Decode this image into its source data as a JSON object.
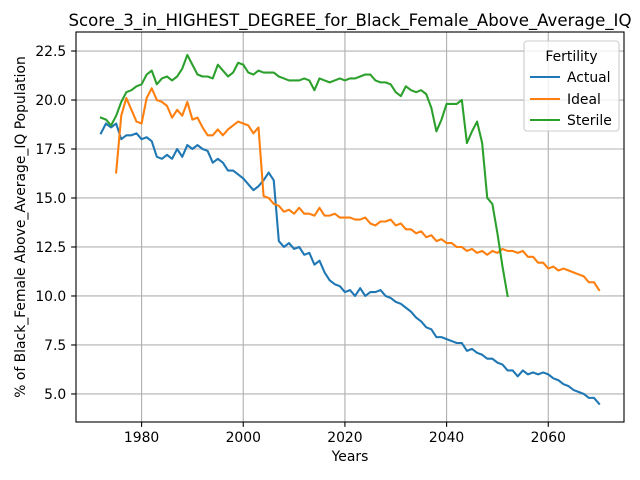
{
  "chart_data": {
    "type": "line",
    "title": "Score_3_in_HIGHEST_DEGREE_for_Black_Female_Above_Average_IQ",
    "xlabel": "Years",
    "ylabel": "% of Black_Female Above_Average_IQ Population",
    "xlim": [
      1967.1,
      2074.9
    ],
    "ylim": [
      3.57,
      23.47
    ],
    "x_ticks": [
      1980,
      2000,
      2020,
      2040,
      2060
    ],
    "x_tick_labels": [
      "1980",
      "2000",
      "2020",
      "2040",
      "2060"
    ],
    "y_ticks": [
      5,
      7.5,
      10,
      12.5,
      15,
      17.5,
      20,
      22.5
    ],
    "y_tick_labels": [
      "5.0",
      "7.5",
      "10.0",
      "12.5",
      "15.0",
      "17.5",
      "20.0",
      "22.5"
    ],
    "grid": true,
    "legend": {
      "title": "Fertility",
      "position": "top-right"
    },
    "x": [
      1972,
      1973,
      1974,
      1975,
      1976,
      1977,
      1978,
      1979,
      1980,
      1981,
      1982,
      1983,
      1984,
      1985,
      1986,
      1987,
      1988,
      1989,
      1990,
      1991,
      1992,
      1993,
      1994,
      1995,
      1996,
      1997,
      1998,
      1999,
      2000,
      2001,
      2002,
      2003,
      2004,
      2005,
      2006,
      2007,
      2008,
      2009,
      2010,
      2011,
      2012,
      2013,
      2014,
      2015,
      2016,
      2017,
      2018,
      2019,
      2020,
      2021,
      2022,
      2023,
      2024,
      2025,
      2026,
      2027,
      2028,
      2029,
      2030,
      2031,
      2032,
      2033,
      2034,
      2035,
      2036,
      2037,
      2038,
      2039,
      2040,
      2041,
      2042,
      2043,
      2044,
      2045,
      2046,
      2047,
      2048,
      2049,
      2050,
      2051,
      2052,
      2053,
      2054,
      2055,
      2056,
      2057,
      2058,
      2059,
      2060,
      2061,
      2062,
      2063,
      2064,
      2065,
      2066,
      2067,
      2068,
      2069,
      2070
    ],
    "series": [
      {
        "name": "Actual",
        "color": "#1f77b4",
        "values": [
          18.3,
          18.8,
          18.6,
          18.8,
          18.0,
          18.2,
          18.2,
          18.3,
          18.0,
          18.1,
          17.9,
          17.1,
          17.0,
          17.2,
          17.0,
          17.5,
          17.1,
          17.7,
          17.5,
          17.7,
          17.5,
          17.4,
          16.8,
          17.0,
          16.8,
          16.4,
          16.4,
          16.2,
          16.0,
          15.7,
          15.4,
          15.6,
          15.9,
          16.3,
          15.9,
          12.8,
          12.5,
          12.7,
          12.4,
          12.5,
          12.1,
          12.2,
          11.6,
          11.8,
          11.2,
          10.8,
          10.6,
          10.5,
          10.2,
          10.3,
          10.0,
          10.4,
          10.0,
          10.2,
          10.2,
          10.3,
          10.0,
          9.9,
          9.7,
          9.6,
          9.4,
          9.2,
          8.9,
          8.7,
          8.4,
          8.3,
          7.9,
          7.9,
          7.8,
          7.7,
          7.6,
          7.6,
          7.2,
          7.3,
          7.1,
          7.0,
          6.8,
          6.8,
          6.6,
          6.5,
          6.2,
          6.2,
          5.9,
          6.2,
          6.0,
          6.1,
          6.0,
          6.1,
          6.0,
          5.8,
          5.7,
          5.5,
          5.4,
          5.2,
          5.1,
          5.0,
          4.8,
          4.8,
          4.5
        ]
      },
      {
        "name": "Ideal",
        "color": "#ff7f0e",
        "values": [
          null,
          null,
          null,
          16.3,
          19.2,
          20.1,
          19.5,
          18.9,
          18.8,
          20.1,
          20.6,
          20.0,
          19.9,
          19.7,
          19.1,
          19.5,
          19.2,
          19.9,
          19.0,
          19.1,
          18.6,
          18.2,
          18.2,
          18.5,
          18.2,
          18.5,
          18.7,
          18.9,
          18.8,
          18.7,
          18.3,
          18.6,
          15.1,
          15.0,
          14.7,
          14.6,
          14.3,
          14.4,
          14.2,
          14.5,
          14.2,
          14.2,
          14.1,
          14.5,
          14.1,
          14.1,
          14.2,
          14.0,
          14.0,
          14.0,
          13.9,
          13.9,
          14.0,
          13.7,
          13.6,
          13.8,
          13.8,
          13.9,
          13.6,
          13.7,
          13.4,
          13.4,
          13.2,
          13.3,
          13.0,
          13.1,
          12.8,
          12.9,
          12.7,
          12.7,
          12.5,
          12.5,
          12.3,
          12.4,
          12.2,
          12.3,
          12.1,
          12.3,
          12.2,
          12.4,
          12.3,
          12.3,
          12.2,
          12.3,
          12.0,
          12.0,
          11.7,
          11.7,
          11.4,
          11.5,
          11.3,
          11.4,
          11.3,
          11.2,
          11.1,
          11.0,
          10.7,
          10.7,
          10.3
        ]
      },
      {
        "name": "Sterile",
        "color": "#2ca02c",
        "values": [
          19.1,
          19.0,
          18.7,
          19.2,
          19.9,
          20.4,
          20.5,
          20.7,
          20.8,
          21.3,
          21.5,
          20.8,
          21.1,
          21.2,
          21.0,
          21.2,
          21.6,
          22.3,
          21.8,
          21.3,
          21.2,
          21.2,
          21.1,
          21.8,
          21.5,
          21.2,
          21.4,
          21.9,
          21.8,
          21.4,
          21.3,
          21.5,
          21.4,
          21.4,
          21.4,
          21.2,
          21.1,
          21.0,
          21.0,
          21.0,
          21.1,
          21.0,
          20.5,
          21.1,
          21.0,
          20.9,
          21.0,
          21.1,
          21.0,
          21.1,
          21.1,
          21.2,
          21.3,
          21.3,
          21.0,
          20.9,
          20.9,
          20.8,
          20.4,
          20.2,
          20.7,
          20.5,
          20.4,
          20.5,
          20.3,
          19.6,
          18.4,
          19.0,
          19.8,
          19.8,
          19.8,
          20.0,
          17.8,
          18.4,
          18.9,
          17.8,
          15.0,
          14.7,
          13.2,
          11.5,
          10.0,
          null,
          null,
          null,
          null,
          null,
          null,
          null,
          null,
          null,
          null,
          null,
          null,
          null,
          null,
          null,
          null,
          null,
          null
        ]
      }
    ]
  }
}
